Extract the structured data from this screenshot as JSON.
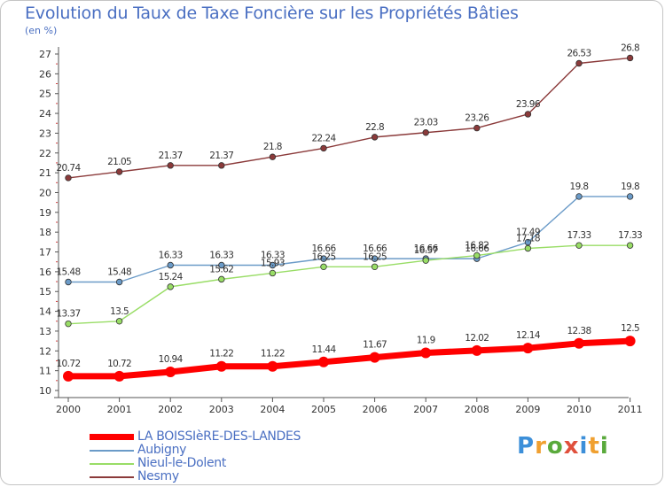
{
  "chart_data": {
    "type": "line",
    "title": "Evolution du Taux de Taxe Foncière sur les Propriétés Bâties",
    "unit_label": "(en %)",
    "xlabel": "",
    "ylabel": "(en %)",
    "ylim": [
      10,
      27
    ],
    "yticks": [
      "10",
      "11",
      "12",
      "13",
      "14",
      "15",
      "16",
      "17",
      "18",
      "19",
      "20",
      "21",
      "22",
      "23",
      "24",
      "25",
      "26",
      "27"
    ],
    "categories": [
      "2000",
      "2001",
      "2002",
      "2003",
      "2004",
      "2005",
      "2006",
      "2007",
      "2008",
      "2009",
      "2010",
      "2011"
    ],
    "grid": false,
    "series": [
      {
        "name": "LA BOISSIèRE-DES-LANDES",
        "color": "#ff0000",
        "values": [
          10.72,
          10.72,
          10.94,
          11.22,
          11.22,
          11.44,
          11.67,
          11.9,
          12.02,
          12.14,
          12.38,
          12.5
        ],
        "labels": [
          "10.72",
          "10.72",
          "10.94",
          "11.22",
          "11.22",
          "11.44",
          "11.67",
          "11.9",
          "12.02",
          "12.14",
          "12.38",
          "12.5"
        ]
      },
      {
        "name": "Aubigny",
        "color": "#6b9bc8",
        "values": [
          15.48,
          15.48,
          16.33,
          16.33,
          16.33,
          16.66,
          16.66,
          16.66,
          16.66,
          17.49,
          19.8,
          19.8
        ],
        "labels": [
          "15.48",
          "15.48",
          "16.33",
          "16.33",
          "16.33",
          "16.66",
          "16.66",
          "16.66",
          "16.66",
          "17.49",
          "19.8",
          "19.8"
        ]
      },
      {
        "name": "Nieul-le-Dolent",
        "color": "#99dd66",
        "values": [
          13.37,
          13.5,
          15.24,
          15.62,
          15.93,
          16.25,
          16.25,
          16.57,
          16.82,
          17.18,
          17.33,
          17.33
        ],
        "labels": [
          "13.37",
          "13.5",
          "15.24",
          "15.62",
          "15.93",
          "16.25",
          "16.25",
          "16.57",
          "16.82",
          "17.18",
          "17.33",
          "17.33"
        ]
      },
      {
        "name": "Nesmy",
        "color": "#8b3a3a",
        "values": [
          20.74,
          21.05,
          21.37,
          21.37,
          21.8,
          22.24,
          22.8,
          23.03,
          23.26,
          23.96,
          26.53,
          26.8
        ],
        "labels": [
          "20.74",
          "21.05",
          "21.37",
          "21.37",
          "21.8",
          "22.24",
          "22.8",
          "23.03",
          "23.26",
          "23.96",
          "26.53",
          "26.8"
        ]
      }
    ]
  },
  "logo": {
    "text": "Proxiti",
    "letters": [
      "P",
      "r",
      "o",
      "x",
      "i",
      "t",
      "i"
    ]
  }
}
